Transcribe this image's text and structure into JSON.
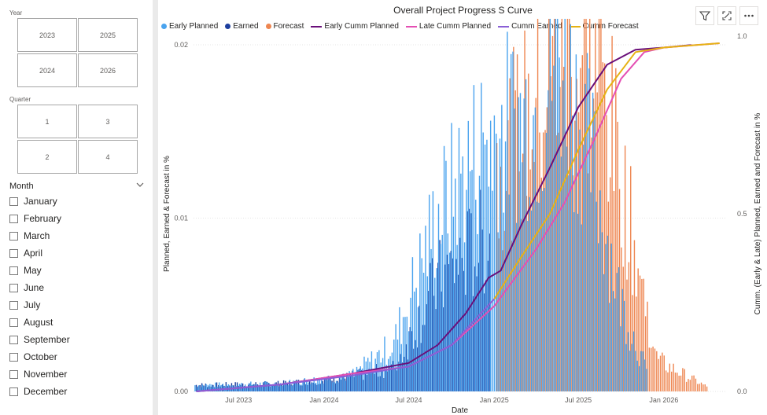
{
  "slicers": {
    "year": {
      "title": "Year",
      "options": [
        "2023",
        "2025",
        "2024",
        "2026"
      ]
    },
    "quarter": {
      "title": "Quarter",
      "options": [
        "1",
        "3",
        "2",
        "4"
      ]
    },
    "month": {
      "title": "Month",
      "options": [
        "January",
        "February",
        "March",
        "April",
        "May",
        "June",
        "July",
        "August",
        "September",
        "October",
        "November",
        "December"
      ]
    }
  },
  "toolbar": {
    "icons": [
      "filter-icon",
      "focus-mode-icon",
      "more-options-icon"
    ]
  },
  "chart_data": {
    "type": "bar",
    "title": "Overall Project Progress S Curve",
    "xlabel": "Date",
    "ylabel": "Planned, Earned & Forecast in %",
    "y2label": "Cumm. (Early & Late) Planned, Earned and Forecast in %",
    "x_ticks": [
      "Jul 2023",
      "Jan 2024",
      "Jul 2024",
      "Jan 2025",
      "Jul 2025",
      "Jan 2026"
    ],
    "y_ticks": [
      "0.00",
      "0.01",
      "0.02"
    ],
    "y2_ticks": [
      "0.0",
      "0.5",
      "1.0"
    ],
    "ylim": [
      0,
      0.0205
    ],
    "y2lim": [
      0,
      1.0
    ],
    "xlim": [
      "2023-03-26",
      "2026-05-15"
    ],
    "legend_position": "top-left",
    "grid": true,
    "colors": {
      "Early Planned": "#4aa3ee",
      "Earned": "#1d3e9e",
      "Forecast": "#ee8651",
      "Early Cumm Planned": "#6a0f7a",
      "Late Cumm Planned": "#e44fb3",
      "Cumm Earned": "#8a5fd6",
      "Cumm Forecast": "#e6b213"
    },
    "legend": [
      "Early Planned",
      "Earned",
      "Forecast",
      "Early Cumm Planned",
      "Late Cumm Planned",
      "Cumm Earned",
      "Cumm Forecast"
    ],
    "series": [
      {
        "name": "Early Planned",
        "kind": "bar",
        "axis": "left",
        "approximate_profile": [
          {
            "x": "2023-04-01",
            "y": 0.0004
          },
          {
            "x": "2023-10-01",
            "y": 0.0005
          },
          {
            "x": "2024-03-01",
            "y": 0.001
          },
          {
            "x": "2024-06-01",
            "y": 0.003
          },
          {
            "x": "2024-09-01",
            "y": 0.011
          },
          {
            "x": "2024-12-15",
            "y": 0.0163
          },
          {
            "x": "2025-04-15",
            "y": 0.018
          },
          {
            "x": "2025-05-20",
            "y": 0.0225
          },
          {
            "x": "2025-08-01",
            "y": 0.015
          },
          {
            "x": "2025-10-01",
            "y": 0.006
          },
          {
            "x": "2025-12-01",
            "y": 0.001
          }
        ]
      },
      {
        "name": "Earned",
        "kind": "bar",
        "axis": "left",
        "approximate_profile": [
          {
            "x": "2023-04-01",
            "y": 0.0004
          },
          {
            "x": "2023-10-01",
            "y": 0.0005
          },
          {
            "x": "2024-02-01",
            "y": 0.0008
          },
          {
            "x": "2024-06-01",
            "y": 0.0015
          },
          {
            "x": "2024-09-01",
            "y": 0.007
          },
          {
            "x": "2024-12-25",
            "y": 0.01
          }
        ]
      },
      {
        "name": "Forecast",
        "kind": "bar",
        "axis": "left",
        "approximate_profile": [
          {
            "x": "2025-01-01",
            "y": 0.014
          },
          {
            "x": "2025-05-01",
            "y": 0.02
          },
          {
            "x": "2025-06-01",
            "y": 0.021
          },
          {
            "x": "2025-08-15",
            "y": 0.0205
          },
          {
            "x": "2025-10-15",
            "y": 0.011
          },
          {
            "x": "2025-12-15",
            "y": 0.002
          },
          {
            "x": "2026-04-01",
            "y": 0.0003
          }
        ]
      },
      {
        "name": "Early Cumm Planned",
        "kind": "line",
        "axis": "right",
        "points": [
          {
            "x": "2023-04-01",
            "y": 0.0
          },
          {
            "x": "2023-10-01",
            "y": 0.02
          },
          {
            "x": "2024-03-01",
            "y": 0.05
          },
          {
            "x": "2024-07-01",
            "y": 0.08
          },
          {
            "x": "2024-09-01",
            "y": 0.13
          },
          {
            "x": "2024-11-01",
            "y": 0.22
          },
          {
            "x": "2024-12-20",
            "y": 0.32
          },
          {
            "x": "2025-01-15",
            "y": 0.34
          },
          {
            "x": "2025-03-01",
            "y": 0.47
          },
          {
            "x": "2025-05-01",
            "y": 0.63
          },
          {
            "x": "2025-07-01",
            "y": 0.8
          },
          {
            "x": "2025-09-01",
            "y": 0.92
          },
          {
            "x": "2025-11-01",
            "y": 0.962
          },
          {
            "x": "2026-01-01",
            "y": 0.968
          },
          {
            "x": "2026-03-01",
            "y": 0.975
          }
        ]
      },
      {
        "name": "Late Cumm Planned",
        "kind": "line",
        "axis": "right",
        "points": [
          {
            "x": "2023-04-01",
            "y": 0.0
          },
          {
            "x": "2023-10-01",
            "y": 0.02
          },
          {
            "x": "2024-03-01",
            "y": 0.05
          },
          {
            "x": "2024-07-01",
            "y": 0.07
          },
          {
            "x": "2024-10-01",
            "y": 0.13
          },
          {
            "x": "2025-01-01",
            "y": 0.24
          },
          {
            "x": "2025-04-01",
            "y": 0.4
          },
          {
            "x": "2025-06-01",
            "y": 0.53
          },
          {
            "x": "2025-08-01",
            "y": 0.7
          },
          {
            "x": "2025-10-01",
            "y": 0.88
          },
          {
            "x": "2025-11-20",
            "y": 0.955
          },
          {
            "x": "2026-01-01",
            "y": 0.968
          },
          {
            "x": "2026-05-01",
            "y": 0.98
          }
        ]
      },
      {
        "name": "Cumm Earned",
        "kind": "line",
        "axis": "right",
        "points": [
          {
            "x": "2023-04-01",
            "y": 0.0
          },
          {
            "x": "2023-10-01",
            "y": 0.02
          },
          {
            "x": "2024-03-01",
            "y": 0.045
          },
          {
            "x": "2024-07-01",
            "y": 0.07
          },
          {
            "x": "2024-10-01",
            "y": 0.13
          },
          {
            "x": "2025-01-01",
            "y": 0.26
          }
        ]
      },
      {
        "name": "Cumm Forecast",
        "kind": "line",
        "axis": "right",
        "points": [
          {
            "x": "2025-01-01",
            "y": 0.26
          },
          {
            "x": "2025-03-01",
            "y": 0.38
          },
          {
            "x": "2025-05-01",
            "y": 0.5
          },
          {
            "x": "2025-07-01",
            "y": 0.68
          },
          {
            "x": "2025-09-01",
            "y": 0.85
          },
          {
            "x": "2025-11-01",
            "y": 0.955
          },
          {
            "x": "2026-01-01",
            "y": 0.968
          },
          {
            "x": "2026-05-01",
            "y": 0.98
          }
        ]
      }
    ]
  }
}
